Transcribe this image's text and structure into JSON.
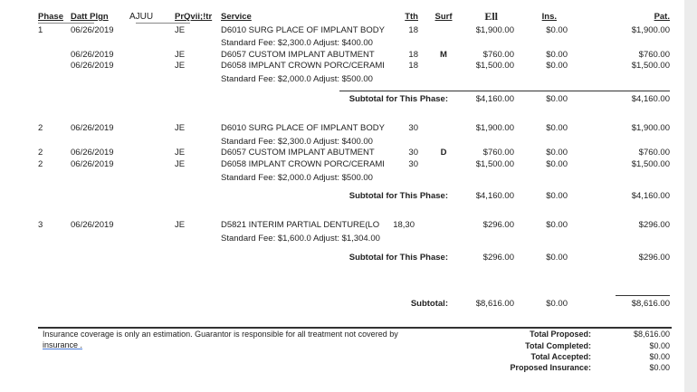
{
  "headers": {
    "phase": "Phase",
    "date": "Datt Plgn",
    "extra": "AJUU",
    "provider": "PrQvii;!tr",
    "service": "Service",
    "tooth": "Tth",
    "surf": "Surf",
    "fee": "Ell",
    "ins": "Ins.",
    "pat": "Pat."
  },
  "phases": [
    {
      "rows": [
        {
          "phase": "1",
          "date": "06/26/2019",
          "prov": "JE",
          "service": "D6010 SURG PLACE OF IMPLANT BODY",
          "tooth": "18",
          "surf": "",
          "fee": "$1,900.00",
          "ins": "$0.00",
          "pat": "$1,900.00",
          "note": "Standard Fee: $2,300.0 Adjust: $400.00"
        },
        {
          "phase": "",
          "date": "06/26/2019",
          "prov": "JE",
          "service": "D6057 CUSTOM IMPLANT ABUTMENT",
          "tooth": "18",
          "surf": "M",
          "fee": "$760.00",
          "ins": "$0.00",
          "pat": "$760.00",
          "note": ""
        },
        {
          "phase": "",
          "date": "06/26/2019",
          "prov": "JE",
          "service": "D6058 IMPLANT CROWN PORC/CERAMI",
          "tooth": "18",
          "surf": "",
          "fee": "$1,500.00",
          "ins": "$0.00",
          "pat": "$1,500.00",
          "note": "Standard Fee: $2,000.0 Adjust: $500.00"
        }
      ],
      "subtotal_label": "Subtotal for This Phase:",
      "subtotal": {
        "fee": "$4,160.00",
        "ins": "$0.00",
        "pat": "$4,160.00"
      }
    },
    {
      "rows": [
        {
          "phase": "2",
          "date": "06/26/2019",
          "prov": "JE",
          "service": "D6010 SURG PLACE OF IMPLANT BODY",
          "tooth": "30",
          "surf": "",
          "fee": "$1,900.00",
          "ins": "$0.00",
          "pat": "$1,900.00",
          "note": "Standard Fee: $2,300.0 Adjust: $400.00"
        },
        {
          "phase": "2",
          "date": "06/26/2019",
          "prov": "JE",
          "service": "D6057 CUSTOM IMPLANT ABUTMENT",
          "tooth": "30",
          "surf": "D",
          "fee": "$760.00",
          "ins": "$0.00",
          "pat": "$760.00",
          "note": ""
        },
        {
          "phase": "2",
          "date": "06/26/2019",
          "prov": "JE",
          "service": "D6058 IMPLANT CROWN PORC/CERAMI",
          "tooth": "30",
          "surf": "",
          "fee": "$1,500.00",
          "ins": "$0.00",
          "pat": "$1,500.00",
          "note": "Standard Fee: $2,000.0 Adjust: $500.00"
        }
      ],
      "subtotal_label": "Subtotal for This Phase:",
      "subtotal": {
        "fee": "$4,160.00",
        "ins": "$0.00",
        "pat": "$4,160.00"
      }
    },
    {
      "rows": [
        {
          "phase": "3",
          "date": "06/26/2019",
          "prov": "JE",
          "service": "D5821  INTERIM PARTIAL DENTURE(LO",
          "tooth": "18,30",
          "surf": "",
          "fee": "$296.00",
          "ins": "$0.00",
          "pat": "$296.00",
          "note": "Standard Fee: $1,600.0 Adjust: $1,304.00"
        }
      ],
      "subtotal_label": "Subtotal for This Phase:",
      "subtotal": {
        "fee": "$296.00",
        "ins": "$0.00",
        "pat": "$296.00"
      }
    }
  ],
  "grand": {
    "label": "Subtotal:",
    "fee": "$8,616.00",
    "ins": "$0.00",
    "pat": "$8,616.00"
  },
  "footer": {
    "disclaimer1": "Insurance coverage is only an estimation. Guarantor is responsible for all treatment not covered by",
    "disclaimer2": "insurance .",
    "totals": [
      {
        "label": "Total Proposed:",
        "value": "$8,616.00"
      },
      {
        "label": "Total Completed:",
        "value": "$0.00"
      },
      {
        "label": "Total Accepted:",
        "value": "$0.00"
      },
      {
        "label": "Proposed Insurance:",
        "value": "$0.00"
      }
    ]
  }
}
